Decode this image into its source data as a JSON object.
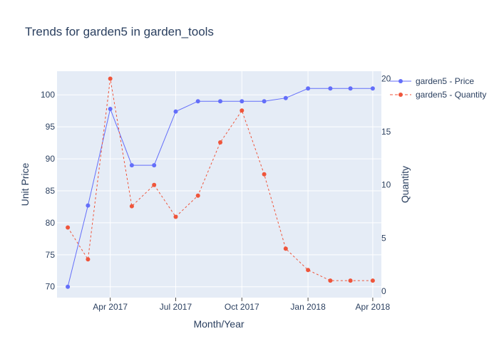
{
  "chart_data": {
    "type": "line",
    "title": "Trends for garden5 in garden_tools",
    "xlabel": "Month/Year",
    "ylabel": "Unit Price",
    "y2label": "Quantity",
    "x": [
      "2017-02-01",
      "2017-03-01",
      "2017-04-01",
      "2017-05-01",
      "2017-06-01",
      "2017-07-01",
      "2017-08-01",
      "2017-09-01",
      "2017-10-01",
      "2017-11-01",
      "2017-12-01",
      "2018-01-01",
      "2018-02-01",
      "2018-03-01",
      "2018-04-01"
    ],
    "x_ticks": [
      {
        "date": "2017-04-01",
        "label": "Apr 2017"
      },
      {
        "date": "2017-07-01",
        "label": "Jul 2017"
      },
      {
        "date": "2017-10-01",
        "label": "Oct 2017"
      },
      {
        "date": "2018-01-01",
        "label": "Jan 2018"
      },
      {
        "date": "2018-04-01",
        "label": "Apr 2018"
      }
    ],
    "xlim": [
      "2017-01-17",
      "2018-04-13"
    ],
    "ylim": [
      68.3,
      103.7
    ],
    "y_ticks": [
      70,
      75,
      80,
      85,
      90,
      95,
      100
    ],
    "y2lim": [
      -0.6,
      20.7
    ],
    "y2_ticks": [
      0,
      5,
      10,
      15,
      20
    ],
    "series": [
      {
        "name": "garden5 - Price",
        "axis": "y",
        "color": "#636efa",
        "dash": "solid",
        "values": [
          70,
          82.7,
          97.8,
          89,
          89,
          97.4,
          99,
          99,
          99,
          99,
          99.5,
          101,
          101,
          101,
          101
        ]
      },
      {
        "name": "garden5 - Quantity",
        "axis": "y2",
        "color": "#ef553b",
        "dash": "dash",
        "values": [
          6,
          3,
          20,
          8,
          10,
          7,
          9,
          14,
          17,
          11,
          4,
          2,
          1,
          1,
          1
        ]
      }
    ],
    "legend_position": "top-right",
    "grid": true,
    "background": "#e5ecf6"
  }
}
